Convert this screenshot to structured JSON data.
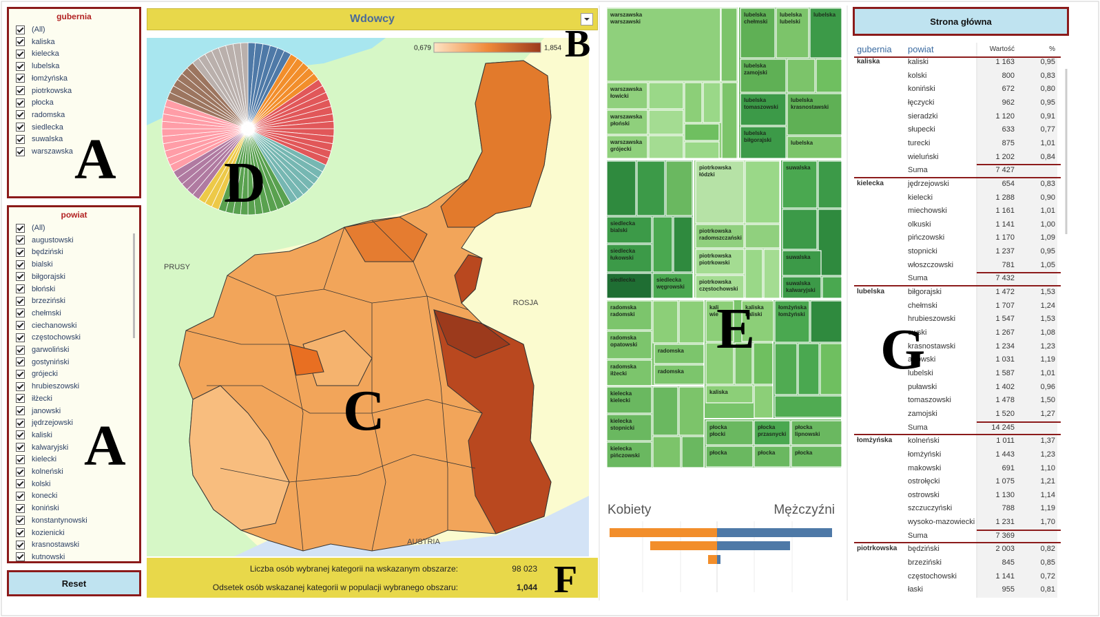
{
  "filters": {
    "gubernia": {
      "title": "gubernia",
      "items": [
        "(All)",
        "kaliska",
        "kielecka",
        "lubelska",
        "łomżyńska",
        "piotrkowska",
        "płocka",
        "radomska",
        "siedlecka",
        "suwalska",
        "warszawska"
      ]
    },
    "powiat": {
      "title": "powiat",
      "items": [
        "(All)",
        "augustowski",
        "będziński",
        "bialski",
        "biłgorajski",
        "błoński",
        "brzeziński",
        "chełmski",
        "ciechanowski",
        "częstochowski",
        "garwoliński",
        "gostyniński",
        "grójecki",
        "hrubieszowski",
        "iłżecki",
        "janowski",
        "jędrzejowski",
        "kaliski",
        "kalwaryjski",
        "kielecki",
        "kolneński",
        "kolski",
        "konecki",
        "koniński",
        "konstantynowski",
        "kozienicki",
        "krasnostawski",
        "kutnowski"
      ]
    }
  },
  "reset": "Reset",
  "dropdown": "Wdowcy",
  "map": {
    "legend_min": "0,679",
    "legend_max": "1,854",
    "labels": [
      "PRUSY",
      "ROSJA",
      "AUSTRIA"
    ]
  },
  "summary": [
    {
      "label": "Liczba osób wybranej kategorii na wskazanym obszarze:",
      "value": "98 023"
    },
    {
      "label": "Odsetek osób wskazanej kategorii w populacji wybranego obszaru:",
      "value": "1,044"
    }
  ],
  "treemap": {
    "tiles": [
      [
        "warszawska",
        "warszawski"
      ],
      [
        "warszawska",
        "łowicki"
      ],
      [
        "warszawska",
        "płoński"
      ],
      [
        "warszawska",
        "grójecki"
      ],
      [
        "lubelska",
        "chełmski"
      ],
      [
        "lubelska",
        "lubelski"
      ],
      [
        "lubelska"
      ],
      [
        "lubelska",
        "zamojski"
      ],
      [
        "lubelska",
        "tomaszowski"
      ],
      [
        "lubelska",
        "biłgorajski"
      ],
      [
        "lubelska",
        "krasnostawski"
      ],
      [
        "lubelska"
      ],
      [
        "siedlecka",
        "bialski"
      ],
      [
        "siedlecka",
        "łukowski"
      ],
      [
        "siedlecka"
      ],
      [
        "siedlecka",
        "węgrowski"
      ],
      [
        "piotrkowska",
        "łódzki"
      ],
      [
        "piotrkowska",
        "radomszczański"
      ],
      [
        "piotrkowska",
        "piotrkowski"
      ],
      [
        "piotrkowska",
        "częstochowski"
      ],
      [
        "suwalska"
      ],
      [
        "suwalska"
      ],
      [
        "suwalska",
        "kalwaryjski"
      ],
      [
        "radomska",
        "radomski"
      ],
      [
        "radomska",
        "opatowski"
      ],
      [
        "radomska",
        "iłżecki"
      ],
      [
        "radomska"
      ],
      [
        "radomska"
      ],
      [
        "kielecka",
        "kielecki"
      ],
      [
        "kielecka",
        "stopnicki"
      ],
      [
        "kielecka",
        "pińczowski"
      ],
      [
        "kali",
        "wie"
      ],
      [
        "kaliska",
        "kaliski"
      ],
      [
        "łomżyńska",
        "łomżyński"
      ],
      [
        "kaliska"
      ],
      [
        "płocka",
        "płocki"
      ],
      [
        "płocka",
        "przasnycki"
      ],
      [
        "płocka",
        "lipnowski"
      ],
      [
        "płocka"
      ],
      [
        "płocka"
      ],
      [
        "płocka"
      ]
    ]
  },
  "gender": {
    "left": "Kobiety",
    "right": "Mężczyźni"
  },
  "table": {
    "button": "Strona główna",
    "headers": [
      "gubernia",
      "powiat",
      "Wartość",
      "%"
    ],
    "groups": [
      {
        "gubernia": "kaliska",
        "rows": [
          [
            "kaliski",
            "1 163",
            "0,95"
          ],
          [
            "kolski",
            "800",
            "0,83"
          ],
          [
            "koniński",
            "672",
            "0,80"
          ],
          [
            "łęczycki",
            "962",
            "0,95"
          ],
          [
            "sieradzki",
            "1 120",
            "0,91"
          ],
          [
            "słupecki",
            "633",
            "0,77"
          ],
          [
            "turecki",
            "875",
            "1,01"
          ],
          [
            "wieluński",
            "1 202",
            "0,84"
          ]
        ],
        "sum_label": "Suma",
        "sum": "7 427"
      },
      {
        "gubernia": "kielecka",
        "rows": [
          [
            "jędrzejowski",
            "654",
            "0,83"
          ],
          [
            "kielecki",
            "1 288",
            "0,90"
          ],
          [
            "miechowski",
            "1 161",
            "1,01"
          ],
          [
            "olkuski",
            "1 141",
            "1,00"
          ],
          [
            "pińczowski",
            "1 170",
            "1,09"
          ],
          [
            "stopnicki",
            "1 237",
            "0,95"
          ],
          [
            "włoszczowski",
            "781",
            "1,05"
          ]
        ],
        "sum_label": "Suma",
        "sum": "7 432"
      },
      {
        "gubernia": "lubelska",
        "rows": [
          [
            "biłgorajski",
            "1 472",
            "1,53"
          ],
          [
            "chełmski",
            "1 707",
            "1,24"
          ],
          [
            "hrubieszowski",
            "1 547",
            "1,53"
          ],
          [
            "owski",
            "1 267",
            "1,08"
          ],
          [
            "krasnostawski",
            "1 234",
            "1,23"
          ],
          [
            "artowski",
            "1 031",
            "1,19"
          ],
          [
            "lubelski",
            "1 587",
            "1,01"
          ],
          [
            "puławski",
            "1 402",
            "0,96"
          ],
          [
            "tomaszowski",
            "1 478",
            "1,50"
          ],
          [
            "zamojski",
            "1 520",
            "1,27"
          ]
        ],
        "sum_label": "Suma",
        "sum": "14 245"
      },
      {
        "gubernia": "łomżyńska",
        "rows": [
          [
            "kolneński",
            "1 011",
            "1,37"
          ],
          [
            "łomżyński",
            "1 443",
            "1,23"
          ],
          [
            "makowski",
            "691",
            "1,10"
          ],
          [
            "ostrołęcki",
            "1 075",
            "1,21"
          ],
          [
            "ostrowski",
            "1 130",
            "1,14"
          ],
          [
            "szczuczyński",
            "788",
            "1,19"
          ],
          [
            "wysoko-mazowiecki",
            "1 231",
            "1,70"
          ]
        ],
        "sum_label": "Suma",
        "sum": "7 369"
      },
      {
        "gubernia": "piotrkowska",
        "rows": [
          [
            "będziński",
            "2 003",
            "0,82"
          ],
          [
            "brzeziński",
            "845",
            "0,85"
          ],
          [
            "częstochowski",
            "1 141",
            "0,72"
          ],
          [
            "łaski",
            "955",
            "0,81"
          ]
        ]
      }
    ]
  },
  "annotations": [
    "A",
    "A",
    "B",
    "C",
    "D",
    "E",
    "F",
    "G"
  ]
}
